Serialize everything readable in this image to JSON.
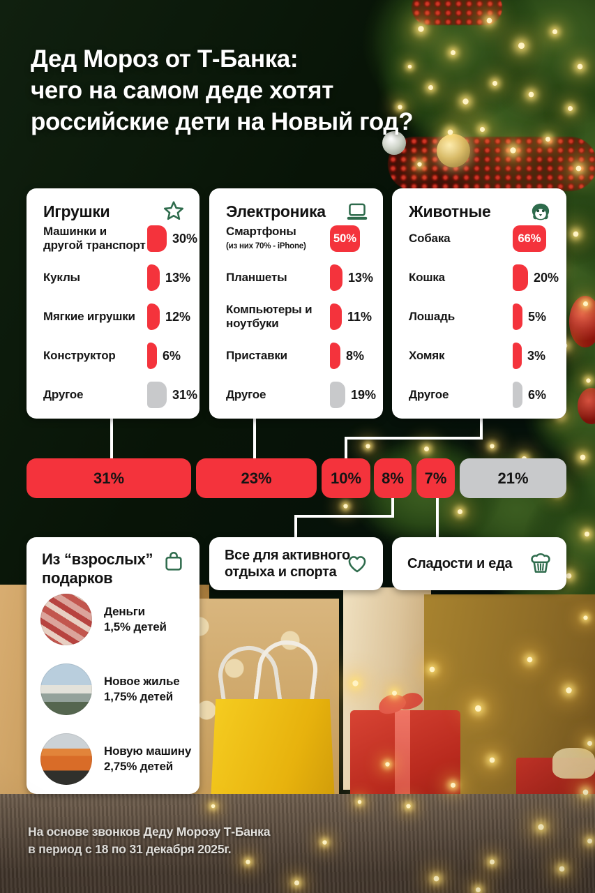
{
  "title": {
    "lines": [
      "Дед Мороз от Т-Банка:",
      "чего на самом деде хотят",
      "российские дети на Новый год?"
    ]
  },
  "colors": {
    "red": "#F4333C",
    "gray": "#C8C9CB",
    "icon_green": "#2E6B4C",
    "card_bg": "#FFFFFF"
  },
  "top_cards": [
    {
      "title": "Игрушки",
      "icon": "star-icon",
      "items": [
        {
          "label": "Машинки и другой транспорт",
          "value": 30,
          "display": "30%",
          "color": "red"
        },
        {
          "label": "Куклы",
          "value": 13,
          "display": "13%",
          "color": "red"
        },
        {
          "label": "Мягкие игрушки",
          "value": 12,
          "display": "12%",
          "color": "red"
        },
        {
          "label": "Конструктор",
          "value": 6,
          "display": "6%",
          "color": "red"
        },
        {
          "label": "Другое",
          "value": 31,
          "display": "31%",
          "color": "gray"
        }
      ]
    },
    {
      "title": "Электроника",
      "icon": "laptop-icon",
      "items": [
        {
          "label": "Смартфоны",
          "sublabel": "(из них 70% - iPhone)",
          "value": 50,
          "display": "50%",
          "color": "red"
        },
        {
          "label": "Планшеты",
          "value": 13,
          "display": "13%",
          "color": "red"
        },
        {
          "label": "Компьютеры и ноутбуки",
          "value": 11,
          "display": "11%",
          "color": "red"
        },
        {
          "label": "Приставки",
          "value": 8,
          "display": "8%",
          "color": "red"
        },
        {
          "label": "Другое",
          "value": 19,
          "display": "19%",
          "color": "gray"
        }
      ]
    },
    {
      "title": "Животные",
      "icon": "dog-icon",
      "items": [
        {
          "label": "Собака",
          "value": 66,
          "display": "66%",
          "color": "red"
        },
        {
          "label": "Кошка",
          "value": 20,
          "display": "20%",
          "color": "red"
        },
        {
          "label": "Лошадь",
          "value": 5,
          "display": "5%",
          "color": "red"
        },
        {
          "label": "Хомяк",
          "value": 3,
          "display": "3%",
          "color": "red"
        },
        {
          "label": "Другое",
          "value": 6,
          "display": "6%",
          "color": "gray"
        }
      ]
    }
  ],
  "pills": [
    {
      "label": "31%",
      "color": "red"
    },
    {
      "label": "23%",
      "color": "red"
    },
    {
      "label": "10%",
      "color": "red"
    },
    {
      "label": "8%",
      "color": "red"
    },
    {
      "label": "7%",
      "color": "red"
    },
    {
      "label": "21%",
      "color": "gray"
    }
  ],
  "bottom_cards": [
    {
      "title": "Из “взрослых” подарков",
      "icon": "shopping-bag-icon",
      "items": [
        {
          "label": "Деньги",
          "sublabel": "1,5% детей",
          "image": "money-photo"
        },
        {
          "label": "Новое жилье",
          "sublabel": "1,75% детей",
          "image": "house-photo"
        },
        {
          "label": "Новую машину",
          "sublabel": "2,75% детей",
          "image": "car-photo"
        }
      ]
    },
    {
      "title": "Все для активного отдыха и спорта",
      "icon": "heart-icon"
    },
    {
      "title": "Сладости и еда",
      "icon": "cupcake-icon"
    }
  ],
  "footer": {
    "lines": [
      "На основе звонков Деду Морозу Т-Банка",
      "в период с 18 по 31 декабря 2025г."
    ]
  },
  "chart_data": [
    {
      "type": "bar",
      "title": "Игрушки",
      "categories": [
        "Машинки и другой транспорт",
        "Куклы",
        "Мягкие игрушки",
        "Конструктор",
        "Другое"
      ],
      "values": [
        30,
        13,
        12,
        6,
        31
      ],
      "unit": "%"
    },
    {
      "type": "bar",
      "title": "Электроника",
      "categories": [
        "Смартфоны (из них 70% - iPhone)",
        "Планшеты",
        "Компьютеры и ноутбуки",
        "Приставки",
        "Другое"
      ],
      "values": [
        50,
        13,
        11,
        8,
        19
      ],
      "unit": "%"
    },
    {
      "type": "bar",
      "title": "Животные",
      "categories": [
        "Собака",
        "Кошка",
        "Лошадь",
        "Хомяк",
        "Другое"
      ],
      "values": [
        66,
        20,
        5,
        3,
        6
      ],
      "unit": "%"
    },
    {
      "type": "bar",
      "title": "Доли категорий подарков",
      "categories": [
        "Игрушки",
        "Электроника",
        "Животные",
        "Все для активного отдыха и спорта",
        "Сладости и еда",
        "Другое"
      ],
      "values": [
        31,
        23,
        10,
        8,
        7,
        21
      ],
      "unit": "%"
    },
    {
      "type": "bar",
      "title": "Из “взрослых” подарков",
      "categories": [
        "Деньги",
        "Новое жилье",
        "Новую машину"
      ],
      "values": [
        1.5,
        1.75,
        2.75
      ],
      "unit": "% детей"
    }
  ]
}
